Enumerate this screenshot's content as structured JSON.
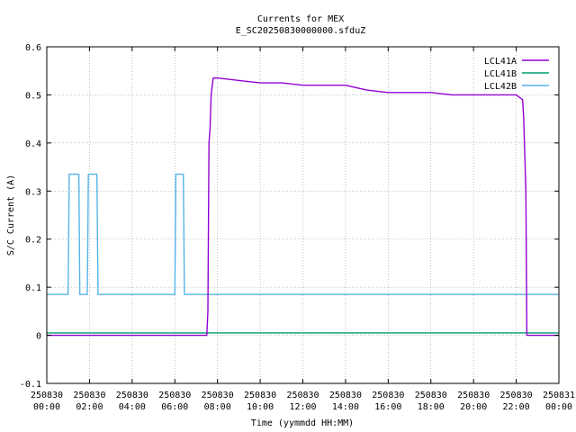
{
  "chart_data": {
    "type": "line",
    "title": "Currents for MEX",
    "subtitle": "E_SC20250830000000.sfduZ",
    "xlabel": "Time (yymmdd HH:MM)",
    "ylabel": "S/C Current (A)",
    "xlim": [
      0,
      24
    ],
    "ylim": [
      -0.1,
      0.6
    ],
    "grid": true,
    "legend_position": "top-right",
    "x_ticks": [
      {
        "value": 0,
        "date": "250830",
        "time": "00:00"
      },
      {
        "value": 2,
        "date": "250830",
        "time": "02:00"
      },
      {
        "value": 4,
        "date": "250830",
        "time": "04:00"
      },
      {
        "value": 6,
        "date": "250830",
        "time": "06:00"
      },
      {
        "value": 8,
        "date": "250830",
        "time": "08:00"
      },
      {
        "value": 10,
        "date": "250830",
        "time": "10:00"
      },
      {
        "value": 12,
        "date": "250830",
        "time": "12:00"
      },
      {
        "value": 14,
        "date": "250830",
        "time": "14:00"
      },
      {
        "value": 16,
        "date": "250830",
        "time": "16:00"
      },
      {
        "value": 18,
        "date": "250830",
        "time": "18:00"
      },
      {
        "value": 20,
        "date": "250830",
        "time": "20:00"
      },
      {
        "value": 22,
        "date": "250830",
        "time": "22:00"
      },
      {
        "value": 24,
        "date": "250831",
        "time": "00:00"
      }
    ],
    "y_ticks": [
      -0.1,
      0,
      0.1,
      0.2,
      0.3,
      0.4,
      0.5,
      0.6
    ],
    "y_tick_labels": [
      "-0.1",
      "0",
      "0.1",
      "0.2",
      "0.3",
      "0.4",
      "0.5",
      "0.6"
    ],
    "series": [
      {
        "name": "LCL41A",
        "color": "#9400d3",
        "x": [
          0,
          7.5,
          7.55,
          7.6,
          7.65,
          7.7,
          7.8,
          8.0,
          9.0,
          10.0,
          11.0,
          12.0,
          13.0,
          14.0,
          14.5,
          15.0,
          16.0,
          17.0,
          18.0,
          19.0,
          20.0,
          21.0,
          22.0,
          22.3,
          22.35,
          22.45,
          22.5,
          24.0
        ],
        "y": [
          0,
          0,
          0.05,
          0.4,
          0.43,
          0.5,
          0.535,
          0.535,
          0.53,
          0.525,
          0.525,
          0.52,
          0.52,
          0.52,
          0.515,
          0.51,
          0.505,
          0.505,
          0.505,
          0.5,
          0.5,
          0.5,
          0.5,
          0.49,
          0.45,
          0.3,
          0,
          0
        ]
      },
      {
        "name": "LCL41B",
        "color": "#009e73",
        "x": [
          0,
          24
        ],
        "y": [
          0.005,
          0.005
        ]
      },
      {
        "name": "LCL42B",
        "color": "#56b4e9",
        "x": [
          0,
          1.0,
          1.05,
          1.5,
          1.55,
          1.9,
          1.95,
          2.35,
          2.4,
          6.0,
          6.05,
          6.4,
          6.45,
          24.0
        ],
        "y": [
          0.085,
          0.085,
          0.335,
          0.335,
          0.085,
          0.085,
          0.335,
          0.335,
          0.085,
          0.085,
          0.335,
          0.335,
          0.085,
          0.085
        ]
      }
    ]
  }
}
